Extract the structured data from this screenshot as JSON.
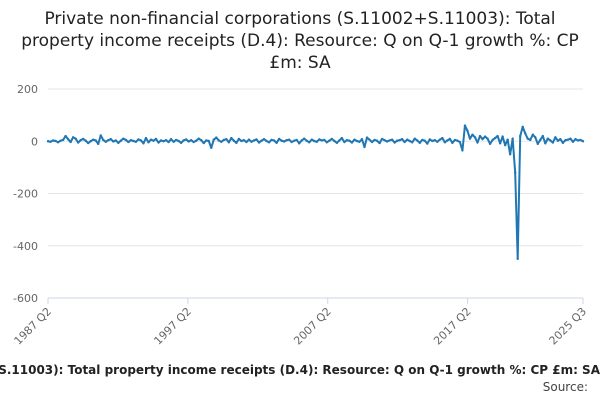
{
  "chart_data": {
    "type": "line",
    "title": "Private non-financial corporations (S.11002+S.11003): Total property income receipts (D.4): Resource: Q on Q-1 growth %: CP £m: SA",
    "xlabel": "",
    "ylabel": "",
    "x_ticks": [
      "1987 Q2",
      "1997 Q2",
      "2007 Q2",
      "2017 Q2",
      "2025 Q3"
    ],
    "y_ticks": [
      200,
      0,
      -200,
      -400,
      -600
    ],
    "ylim": [
      -600,
      200
    ],
    "grid": true,
    "legend_position": "bottom",
    "x_start": "1987 Q2",
    "x_end": "2025 Q3",
    "series": [
      {
        "name": "Private non-financial corporations (S.11002+S.11003): Total property income receipts (D.4): Resource: Q on Q-1 growth %: CP £m: SA",
        "color": "#1f77b4",
        "values": [
          0,
          -2,
          3,
          1,
          -4,
          2,
          5,
          20,
          8,
          -3,
          15,
          10,
          -5,
          4,
          9,
          2,
          -7,
          0,
          6,
          3,
          -10,
          22,
          5,
          -2,
          4,
          8,
          -1,
          3,
          -6,
          2,
          10,
          5,
          -3,
          4,
          1,
          -2,
          7,
          3,
          -8,
          12,
          -4,
          6,
          2,
          9,
          -5,
          3,
          0,
          4,
          -3,
          8,
          -2,
          5,
          1,
          -6,
          3,
          7,
          -1,
          4,
          -3,
          2,
          10,
          4,
          -7,
          3,
          1,
          -25,
          6,
          14,
          3,
          -2,
          5,
          8,
          -4,
          12,
          2,
          -6,
          9,
          1,
          4,
          -3,
          6,
          -2,
          3,
          7,
          -5,
          2,
          8,
          1,
          -4,
          5,
          3,
          -6,
          9,
          2,
          -1,
          4,
          6,
          -3,
          2,
          5,
          -8,
          3,
          10,
          2,
          -4,
          6,
          1,
          -2,
          7,
          3,
          5,
          -4,
          2,
          9,
          1,
          -6,
          3,
          12,
          -3,
          4,
          2,
          -5,
          6,
          1,
          -2,
          8,
          -22,
          14,
          6,
          -3,
          5,
          2,
          -7,
          9,
          4,
          -1,
          3,
          6,
          -5,
          2,
          4,
          8,
          -3,
          6,
          1,
          -4,
          10,
          3,
          -6,
          5,
          2,
          -9,
          7,
          1,
          4,
          -2,
          6,
          12,
          -4,
          3,
          9,
          -6,
          5,
          2,
          -3,
          -35,
          60,
          40,
          10,
          25,
          15,
          -5,
          20,
          8,
          18,
          10,
          -10,
          5,
          12,
          20,
          -8,
          18,
          -15,
          6,
          -50,
          10,
          -120,
          -450,
          20,
          55,
          30,
          10,
          5,
          25,
          15,
          -10,
          5,
          20,
          -8,
          10,
          3,
          -5,
          15,
          2,
          8,
          -6,
          4,
          6,
          10,
          -2,
          8,
          3,
          5,
          0
        ]
      }
    ],
    "source_label": "Source:"
  }
}
